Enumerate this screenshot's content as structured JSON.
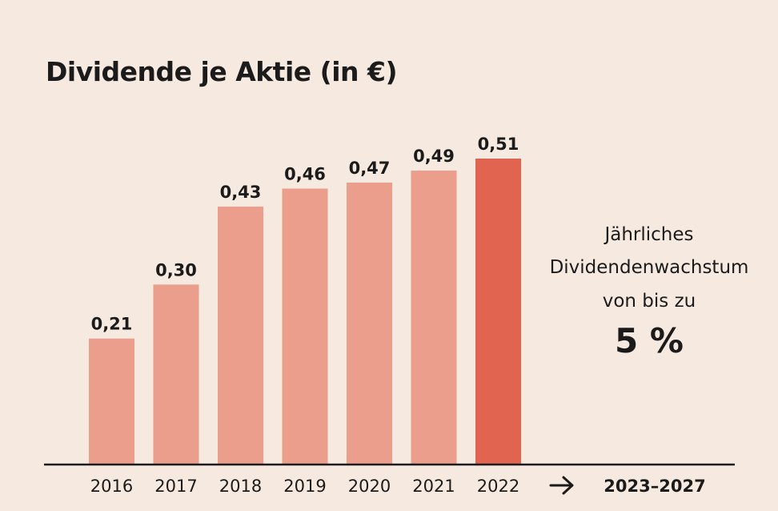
{
  "chart_data": {
    "type": "bar",
    "title": "Dividende je Aktie (in €)",
    "categories": [
      "2016",
      "2017",
      "2018",
      "2019",
      "2020",
      "2021",
      "2022"
    ],
    "values": [
      0.21,
      0.3,
      0.43,
      0.46,
      0.47,
      0.49,
      0.51
    ],
    "value_labels": [
      "0,21",
      "0,30",
      "0,43",
      "0,46",
      "0,47",
      "0,49",
      "0,51"
    ],
    "ylim": [
      0,
      0.51
    ],
    "grid": false,
    "colors": {
      "bar": "#EB9E8B",
      "highlight_bar": "#E06450",
      "axis": "#1B1B1B",
      "background": "#F6E9DF"
    },
    "highlight_index": 6,
    "forecast": {
      "arrow": "→",
      "range_label": "2023–2027"
    },
    "annotation": {
      "lines": [
        "Jährliches",
        "Dividendenwachstum",
        "von bis zu"
      ],
      "value": "5 %"
    }
  }
}
